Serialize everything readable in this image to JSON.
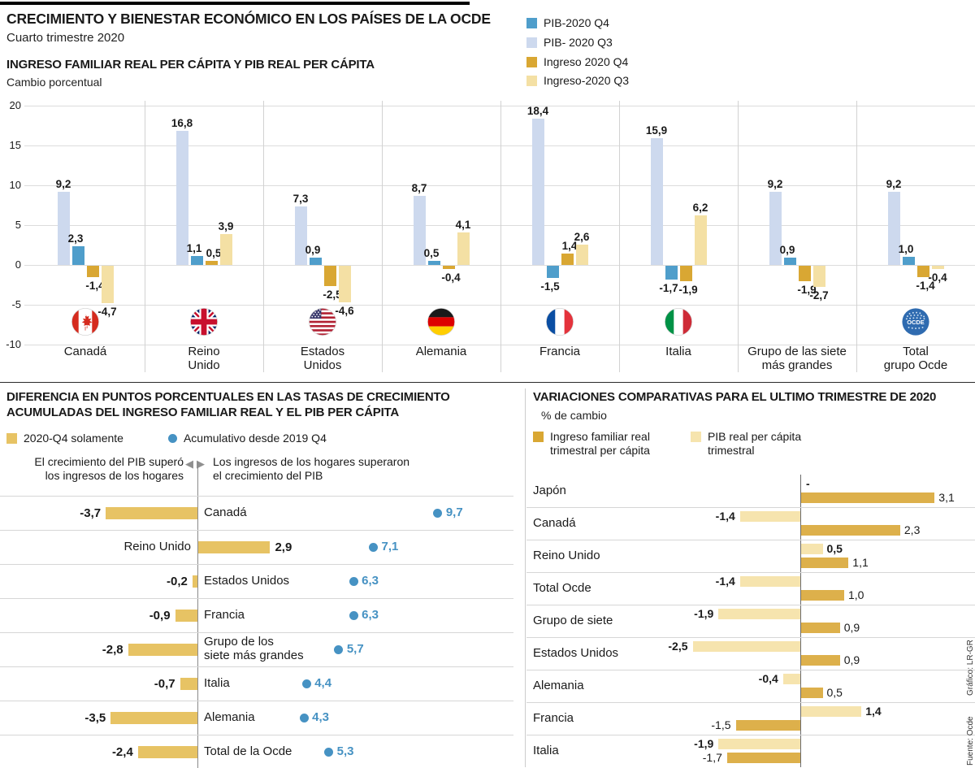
{
  "header": {
    "title": "CRECIMIENTO Y BIENESTAR ECONÓMICO EN LOS PAÍSES DE LA OCDE",
    "subtitle": "Cuarto trimestre 2020"
  },
  "icons": {
    "left_triangle": "◀",
    "right_triangle": "▶",
    "flag_icons": [
      "canada",
      "reino-unido",
      "estados-unidos",
      "alemania",
      "francia",
      "italia",
      "ocde"
    ]
  },
  "credits": {
    "fuente": "Fuente: Ocde",
    "grafico": "Gráfico: LR-GR"
  },
  "chart_data": [
    {
      "id": "ingreso-pib-per-capita",
      "type": "bar",
      "title": "INGRESO FAMILIAR REAL PER CÁPITA Y PIB REAL PER CÁPITA",
      "subtitle": "Cambio porcentual",
      "ylim": [
        -10,
        20
      ],
      "yticks": [
        "20",
        "15",
        "10",
        "5",
        "0",
        "-5",
        "-10"
      ],
      "grid": true,
      "legend_position": "top-right",
      "legend": [
        {
          "label": "PIB-2020 Q4",
          "color": "#4f9ecb"
        },
        {
          "label": "PIB- 2020 Q3",
          "color": "#cdd9ee"
        },
        {
          "label": "Ingreso 2020 Q4",
          "color": "#d9a733"
        },
        {
          "label": "Ingreso-2020 Q3",
          "color": "#f4e0a4"
        }
      ],
      "categories": [
        "Canadá",
        "Reino\nUnido",
        "Estados\nUnidos",
        "Alemania",
        "Francia",
        "Italia",
        "Grupo de las siete\nmás grandes",
        "Total\ngrupo Ocde"
      ],
      "flags": [
        "canada",
        "reino-unido",
        "estados-unidos",
        "alemania",
        "francia",
        "italia",
        "",
        "ocde"
      ],
      "series": [
        {
          "name": "PIB- 2020 Q3",
          "color": "#cdd9ee",
          "values": [
            "9,2",
            "16,8",
            "7,3",
            "8,7",
            "18,4",
            "15,9",
            "9,2",
            "9,2"
          ]
        },
        {
          "name": "PIB-2020 Q4",
          "color": "#4f9ecb",
          "values": [
            "2,3",
            "1,1",
            "0,9",
            "0,5",
            "-1,5",
            "-1,7",
            "0,9",
            "1,0"
          ]
        },
        {
          "name": "Ingreso 2020 Q4",
          "color": "#d9a733",
          "values": [
            "-1,4",
            "0,5",
            "-2,5",
            "-0,4",
            "1,4",
            "-1,9",
            "-1,9",
            "-1,4"
          ]
        },
        {
          "name": "Ingreso-2020 Q3",
          "color": "#f4e0a4",
          "values": [
            "-4,7",
            "3,9",
            "-4,6",
            "4,1",
            "2,6",
            "6,2",
            "-2,7",
            "-0,4"
          ]
        }
      ]
    },
    {
      "id": "diferencia-acumulada",
      "type": "bar",
      "orientation": "horizontal-diverging",
      "title": "DIFERENCIA EN PUNTOS PORCENTUALES EN LAS TASAS DE CRECIMIENTO\nACUMULADAS DEL INGRESO FAMILIAR REAL Y EL PIB PER CÁPITA",
      "legend": [
        {
          "label": "2020-Q4 solamente",
          "color": "#e7c364",
          "marker": "square"
        },
        {
          "label": "Acumulativo desde 2019 Q4",
          "color": "#4692c3",
          "marker": "dot"
        }
      ],
      "annotation_left": "El crecimiento del PIB superó\nlos ingresos de los hogares",
      "annotation_right": "Los ingresos de los hogares superaron\nel crecimiento del PIB",
      "rows": [
        {
          "label": "Canadá",
          "bar": "-3,7",
          "dot": "9,7"
        },
        {
          "label": "Reino Unido",
          "bar": "2,9",
          "dot": "7,1"
        },
        {
          "label": "Estados Unidos",
          "bar": "-0,2",
          "dot": "6,3"
        },
        {
          "label": "Francia",
          "bar": "-0,9",
          "dot": "6,3"
        },
        {
          "label": "Grupo de los\nsiete más grandes",
          "bar": "-2,8",
          "dot": "5,7"
        },
        {
          "label": "Italia",
          "bar": "-0,7",
          "dot": "4,4"
        },
        {
          "label": "Alemania",
          "bar": "-3,5",
          "dot": "4,3"
        },
        {
          "label": "Total de la Ocde",
          "bar": "-2,4",
          "dot": "5,3"
        }
      ]
    },
    {
      "id": "variaciones-comparativas",
      "type": "bar",
      "orientation": "horizontal-paired",
      "title": "VARIACIONES COMPARATIVAS PARA EL ULTIMO TRIMESTRE DE 2020",
      "subtitle": "% de cambio",
      "legend": [
        {
          "label": "Ingreso familiar real\ntrimestral per cápita",
          "color": "#d9a733",
          "marker": "square"
        },
        {
          "label": "PIB real per cápita\ntrimestral",
          "color": "#f6e4ae",
          "marker": "square"
        }
      ],
      "row_bar_colors": [
        "#f6e4ae",
        "#ddb04b"
      ],
      "rows": [
        {
          "label": "Japón",
          "ingreso": "-",
          "pib": "3,1"
        },
        {
          "label": "Canadá",
          "ingreso": "-1,4",
          "pib": "2,3"
        },
        {
          "label": "Reino Unido",
          "ingreso": "0,5",
          "pib": "1,1"
        },
        {
          "label": "Total Ocde",
          "ingreso": "-1,4",
          "pib": "1,0"
        },
        {
          "label": "Grupo de siete",
          "ingreso": "-1,9",
          "pib": "0,9"
        },
        {
          "label": "Estados Unidos",
          "ingreso": "-2,5",
          "pib": "0,9"
        },
        {
          "label": "Alemania",
          "ingreso": "-0,4",
          "pib": "0,5"
        },
        {
          "label": "Francia",
          "ingreso": "1,4",
          "pib": "-1,5"
        },
        {
          "label": "Italia",
          "ingreso": "-1,9",
          "pib": "-1,7"
        }
      ]
    }
  ]
}
